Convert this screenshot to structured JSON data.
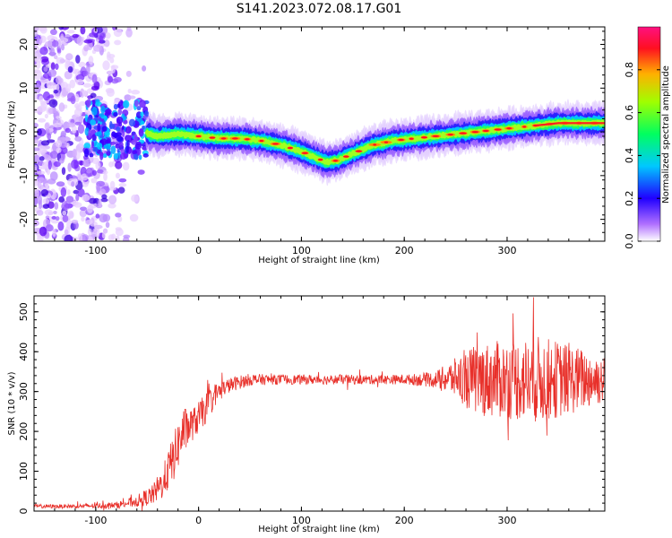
{
  "title": "S141.2023.072.08.17.G01",
  "colors": {
    "snr_line": "#e8302a",
    "axis": "#000000",
    "background": "#ffffff"
  },
  "chart_data": [
    {
      "type": "heatmap",
      "name": "spectrogram",
      "xlabel": "Height of straight line (km)",
      "ylabel": "Frequency (Hz)",
      "xlim": [
        -160,
        395
      ],
      "ylim": [
        -25,
        24
      ],
      "xticks": [
        -100,
        0,
        100,
        200,
        300
      ],
      "xtick_labels": [
        "-100",
        "0",
        "100",
        "200",
        "300"
      ],
      "yticks": [
        -20,
        -10,
        0,
        10,
        20
      ],
      "ytick_labels": [
        "-20",
        "-10",
        "0",
        "10",
        "20"
      ],
      "ridge": {
        "x": [
          -55,
          -40,
          -20,
          0,
          20,
          40,
          60,
          80,
          100,
          115,
          125,
          135,
          150,
          170,
          190,
          210,
          230,
          250,
          270,
          290,
          310,
          330,
          350,
          370,
          395
        ],
        "y": [
          0,
          -1,
          -0.5,
          -1,
          -1.5,
          -1.5,
          -2,
          -3,
          -4.5,
          -6,
          -7,
          -6.5,
          -5,
          -3,
          -2,
          -1.5,
          -1,
          -0.5,
          0,
          0.5,
          1,
          1.5,
          2,
          2,
          2
        ]
      },
      "noise_region_x": [
        -160,
        -50
      ],
      "colorbar": {
        "label": "Normalized spectral amplitude",
        "ticks": [
          0.0,
          0.2,
          0.4,
          0.6,
          0.8
        ],
        "tick_labels": [
          "0.0",
          "0.2",
          "0.4",
          "0.6",
          "0.8"
        ],
        "range": [
          0,
          1
        ],
        "colors": [
          "#ffffff",
          "#7f00ff",
          "#0000ff",
          "#00ffff",
          "#00ff00",
          "#ffff00",
          "#ff8000",
          "#ff0000",
          "#ff0080"
        ]
      }
    },
    {
      "type": "line",
      "name": "snr",
      "xlabel": "Height of straight line (km)",
      "ylabel": "SNR (10 * v/v)",
      "xlim": [
        -160,
        395
      ],
      "ylim": [
        0,
        540
      ],
      "xticks": [
        -100,
        0,
        100,
        200,
        300
      ],
      "xtick_labels": [
        "-100",
        "0",
        "100",
        "200",
        "300"
      ],
      "yticks": [
        0,
        100,
        200,
        300,
        400,
        500
      ],
      "ytick_labels": [
        "0",
        "100",
        "200",
        "300",
        "400",
        "500"
      ],
      "envelope": {
        "x": [
          -160,
          -120,
          -80,
          -60,
          -45,
          -35,
          -25,
          -15,
          -5,
          5,
          15,
          25,
          35,
          50,
          80,
          120,
          160,
          200,
          230,
          250,
          270,
          300,
          330,
          360,
          395
        ],
        "y": [
          12,
          12,
          15,
          25,
          40,
          70,
          130,
          200,
          220,
          250,
          290,
          310,
          320,
          330,
          330,
          330,
          330,
          330,
          330,
          335,
          330,
          330,
          330,
          330,
          330
        ],
        "spread": [
          5,
          5,
          8,
          15,
          25,
          40,
          60,
          60,
          40,
          40,
          30,
          20,
          18,
          15,
          12,
          12,
          12,
          12,
          20,
          50,
          90,
          100,
          110,
          90,
          60
        ]
      }
    }
  ]
}
